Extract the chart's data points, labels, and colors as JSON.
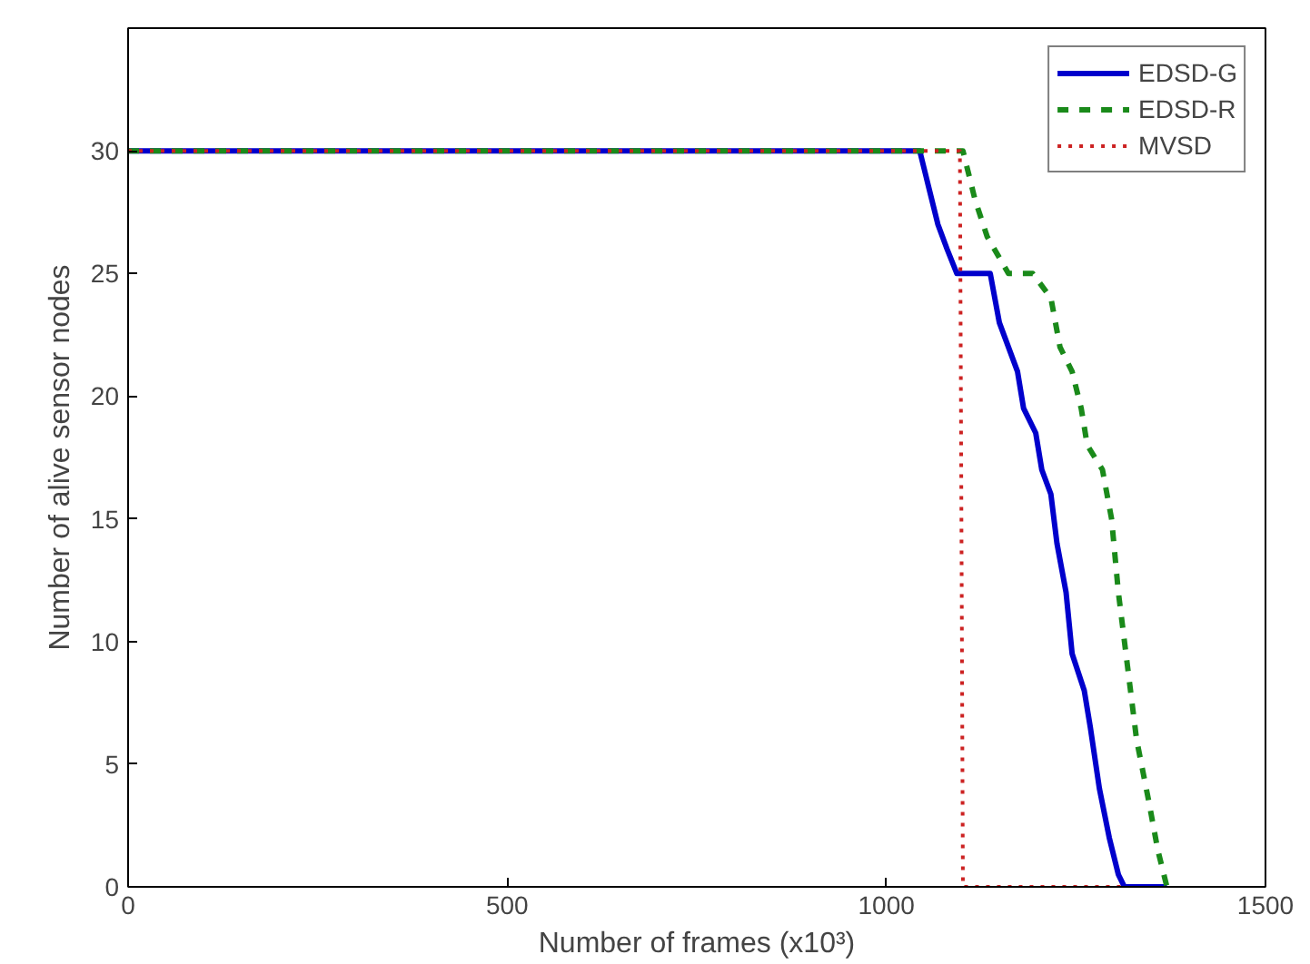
{
  "chart_data": {
    "type": "line",
    "xlabel": "Number of frames (x10³)",
    "ylabel": "Number of alive sensor nodes",
    "xlim": [
      0,
      1500
    ],
    "ylim": [
      0,
      35
    ],
    "xticks": [
      0,
      500,
      1000,
      1500
    ],
    "yticks": [
      0,
      5,
      10,
      15,
      20,
      25,
      30
    ],
    "grid": false,
    "legend": "top right",
    "series": [
      {
        "name": "EDSD-G",
        "color": "#0000cc",
        "line_style": "solid",
        "x": [
          0,
          1044,
          1056,
          1068,
          1080,
          1093,
          1137,
          1149,
          1173,
          1181,
          1197,
          1205,
          1217,
          1225,
          1237,
          1245,
          1261,
          1269,
          1281,
          1294,
          1306,
          1314,
          1370
        ],
        "values": [
          30,
          30,
          28.5,
          27,
          26,
          25,
          25,
          23,
          21,
          19.5,
          18.5,
          17,
          16,
          14,
          12,
          9.5,
          8,
          6.5,
          4,
          2,
          0.5,
          0,
          0
        ]
      },
      {
        "name": "EDSD-R",
        "color": "#1a8a1a",
        "line_style": "dashed",
        "x": [
          0,
          1101,
          1117,
          1133,
          1161,
          1193,
          1217,
          1229,
          1245,
          1257,
          1265,
          1285,
          1297,
          1306,
          1318,
          1330,
          1346,
          1358,
          1370
        ],
        "values": [
          30,
          30,
          28,
          26.5,
          25,
          25,
          24,
          22,
          21,
          19.5,
          18,
          17,
          15,
          12,
          9,
          6,
          3.5,
          1.5,
          0
        ]
      },
      {
        "name": "MVSD",
        "color": "#cc2222",
        "line_style": "dotted",
        "x": [
          0,
          1097,
          1101,
          1310
        ],
        "values": [
          30,
          30,
          0,
          0
        ]
      }
    ]
  }
}
